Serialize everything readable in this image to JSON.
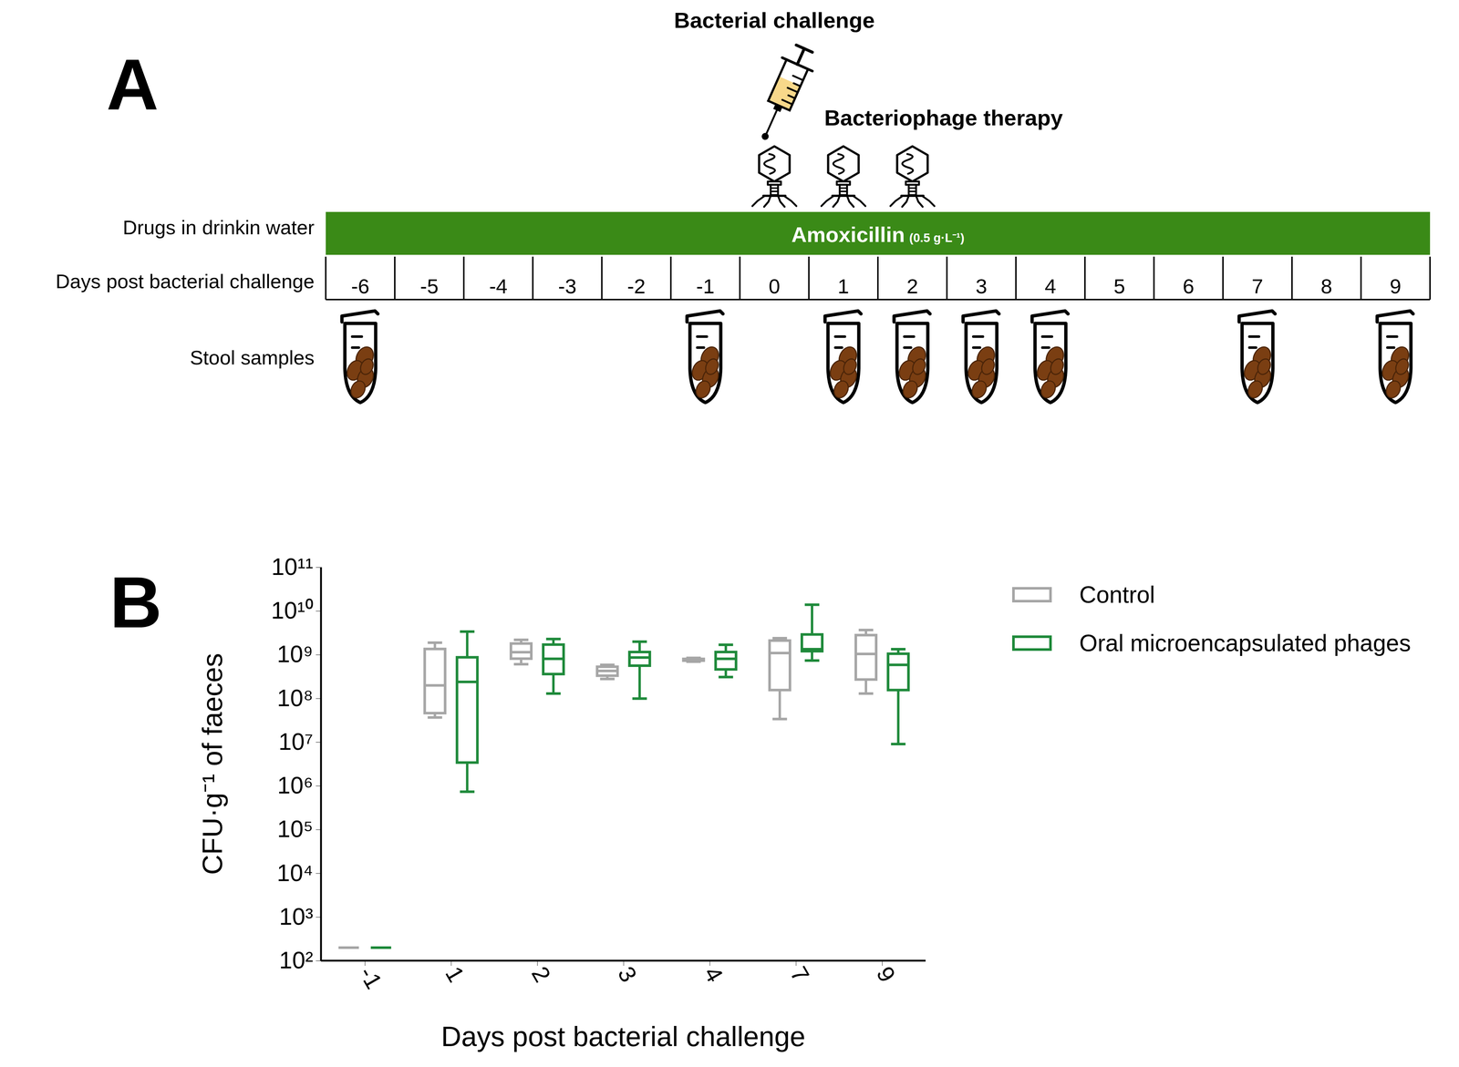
{
  "diagram": {
    "panel_label": "A",
    "drug_row_label": "Drugs in drinkin water",
    "days_row_label": "Days post bacterial challenge",
    "samples_row_label": "Stool samples",
    "drug": "Amoxicillin",
    "drug_dose": "(0.5 g·L⁻¹)",
    "days": [
      -6,
      -5,
      -4,
      -3,
      -2,
      -1,
      0,
      1,
      2,
      3,
      4,
      5,
      6,
      7,
      8,
      9
    ],
    "challenge_label": "Bacterial challenge",
    "challenge_day": 0,
    "therapy_label": "Bacteriophage therapy",
    "therapy_days": [
      0,
      1,
      2
    ],
    "stool_sample_days": [
      -6,
      -1,
      1,
      2,
      3,
      4,
      7,
      9
    ]
  },
  "chart_data": {
    "type": "box",
    "panel_label": "B",
    "x_label": "Days post bacterial challenge",
    "y_label": "CFU·g⁻¹ of faeces",
    "categories": [
      "-1",
      "1",
      "2",
      "3",
      "4",
      "7",
      "9"
    ],
    "log": "y",
    "ylim": [
      100,
      100000000000
    ],
    "yticks": [
      {
        "value": 100,
        "label": "10²"
      },
      {
        "value": 1000,
        "label": "10³"
      },
      {
        "value": 10000,
        "label": "10⁴"
      },
      {
        "value": 100000,
        "label": "10⁵"
      },
      {
        "value": 1000000,
        "label": "10⁶"
      },
      {
        "value": 10000000,
        "label": "10⁷"
      },
      {
        "value": 100000000,
        "label": "10⁸"
      },
      {
        "value": 1000000000,
        "label": "10⁹"
      },
      {
        "value": 10000000000,
        "label": "10¹⁰"
      },
      {
        "value": 100000000000,
        "label": "10¹¹"
      }
    ],
    "legend": "right",
    "series": [
      {
        "name": "Control",
        "color": "#a6a6a6",
        "min": [
          200,
          37000000.0,
          610000000.0,
          280000000.0,
          700000000.0,
          34000000.0,
          130000000.0
        ],
        "q1": [
          200,
          46000000.0,
          810000000.0,
          330000000.0,
          730000000.0,
          155000000.0,
          270000000.0
        ],
        "median": [
          200,
          200000000.0,
          1150000000.0,
          430000000.0,
          770000000.0,
          1100000000.0,
          1050000000.0
        ],
        "q3": [
          200,
          1350000000.0,
          1800000000.0,
          530000000.0,
          800000000.0,
          2100000000.0,
          2800000000.0
        ],
        "max": [
          200,
          1900000000.0,
          2200000000.0,
          590000000.0,
          850000000.0,
          2400000000.0,
          3700000000.0
        ]
      },
      {
        "name": "Oral microencapsulated phages",
        "color": "#1f8a3b",
        "min": [
          200,
          740000.0,
          130000000.0,
          100000000.0,
          310000000.0,
          740000000.0,
          9100000.0
        ],
        "q1": [
          200,
          3400000.0,
          360000000.0,
          560000000.0,
          460000000.0,
          1200000000.0,
          155000000.0
        ],
        "median": [
          200,
          240000000.0,
          810000000.0,
          870000000.0,
          810000000.0,
          1350000000.0,
          590000000.0
        ],
        "q3": [
          200,
          870000000.0,
          1700000000.0,
          1150000000.0,
          1150000000.0,
          2900000000.0,
          1050000000.0
        ],
        "max": [
          200,
          3400000000.0,
          2300000000.0,
          2000000000.0,
          1700000000.0,
          14000000000.0,
          1350000000.0
        ]
      }
    ]
  }
}
